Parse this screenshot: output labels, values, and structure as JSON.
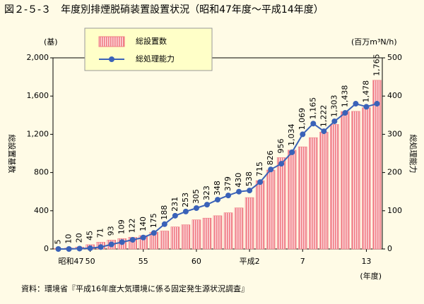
{
  "chart_data": {
    "type": "bar-line",
    "title": "図２-５-３　年度別排煙脱硝装置設置状況（昭和47年度～平成14年度）",
    "y_unit": "(基)",
    "y2_unit": "(百万m³N/h)",
    "ylabel": "総設置基数",
    "y2label": "総処理能力",
    "xlabel": "(年度)",
    "source": "資料：環境省『平成16年度大気環境に係る固定発生源状況調査』",
    "categories": [
      "昭和47",
      null,
      null,
      "50",
      null,
      null,
      null,
      null,
      "55",
      null,
      null,
      null,
      null,
      "60",
      null,
      null,
      null,
      null,
      "平成2",
      null,
      null,
      null,
      null,
      "7",
      null,
      null,
      null,
      null,
      null,
      "13",
      null
    ],
    "series": [
      {
        "name": "総設置数",
        "color": "#f07c84",
        "axis": "y",
        "values": [
          5,
          10,
          20,
          45,
          71,
          93,
          109,
          122,
          140,
          175,
          188,
          231,
          253,
          305,
          323,
          348,
          379,
          430,
          538,
          715,
          826,
          956,
          1034,
          1069,
          1165,
          1222,
          1303,
          1438,
          1440,
          1478,
          1765
        ],
        "value_labels": [
          "5",
          "10",
          "20",
          "45",
          "71",
          "93",
          "109",
          "122",
          "140",
          "175",
          "188",
          "231",
          "253",
          "305",
          "323",
          "348",
          "379",
          "430",
          "538",
          "715",
          "826",
          "956",
          "1,034",
          "1,069",
          "1,165",
          "1,222",
          "1,303",
          "1,438",
          null,
          "1,478",
          "1,765"
        ]
      },
      {
        "name": "総処理能力",
        "color": "#3a62b8",
        "axis": "y2",
        "values": [
          0,
          0,
          1,
          2,
          5,
          12,
          18,
          24,
          30,
          42,
          65,
          87,
          98,
          107,
          116,
          129,
          140,
          150,
          153,
          175,
          208,
          223,
          253,
          300,
          328,
          308,
          334,
          356,
          380,
          372,
          380
        ]
      }
    ],
    "ylim": [
      0,
      2000
    ],
    "yticks": [
      0,
      400,
      800,
      {
        "value": 1200,
        "label": "1,200"
      },
      {
        "value": 1600,
        "label": "1,600"
      },
      {
        "value": 2000,
        "label": "2,000"
      }
    ],
    "y2lim": [
      0,
      500
    ],
    "y2ticks": [
      0,
      100,
      200,
      300,
      400,
      500
    ],
    "legend": "top-left"
  }
}
